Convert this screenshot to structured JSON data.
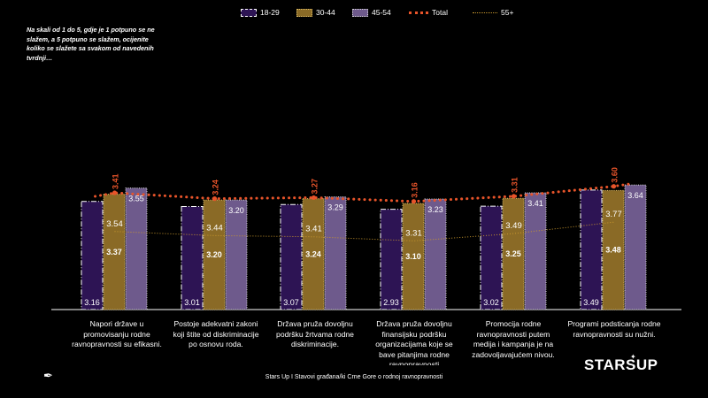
{
  "note": "Na skali od 1 do 5, gdje je 1 potpuno se ne slažem, a 5 potpuno se slažem, ocijenite koliko se slažete sa svakom od navedenih tvrdnji…",
  "footer": "Stars Up I Stavovi građana/ki Crne Gore o rodnoj ravnopravnosti",
  "logo": "STARSUP",
  "colors": {
    "s1829": "#2d1454",
    "s3044": "#8a6a26",
    "s4554": "#6e5a8c",
    "total": "#e8542a",
    "s55": "#c8972e"
  },
  "chart_data": {
    "type": "bar",
    "categories": [
      "Napori države u promovisanju rodne ravnopravnosti su efikasni.",
      "Postoje adekvatni zakoni koji štite od diskriminacije po osnovu roda.",
      "Država pruža dovoljnu podršku žrtvama rodne diskriminacije.",
      "Država pruža dovoljnu finansijsku podršku organizacijama koje se bave pitanjima rodne ravnopravnosti",
      "Promocija rodne ravnopravnosti putem medija i kampanja je na zadovoljavajućem nivou.",
      "Programi podsticanja rodne ravnopravnosti su nužni."
    ],
    "series": [
      {
        "name": "18-29",
        "type": "bar",
        "values": [
          3.16,
          3.01,
          3.07,
          2.93,
          3.02,
          3.49
        ]
      },
      {
        "name": "30-44",
        "type": "bar",
        "values": [
          3.37,
          3.2,
          3.24,
          3.1,
          3.25,
          3.48
        ]
      },
      {
        "name": "45-54",
        "type": "bar",
        "values": [
          3.55,
          3.2,
          3.29,
          3.23,
          3.41,
          3.64
        ]
      },
      {
        "name": "Total",
        "type": "line",
        "values": [
          3.41,
          3.24,
          3.27,
          3.16,
          3.31,
          3.6
        ]
      },
      {
        "name": "55+",
        "type": "line",
        "values": [
          3.54,
          3.44,
          3.41,
          3.31,
          3.49,
          3.77
        ]
      }
    ],
    "legend_position": "top"
  }
}
